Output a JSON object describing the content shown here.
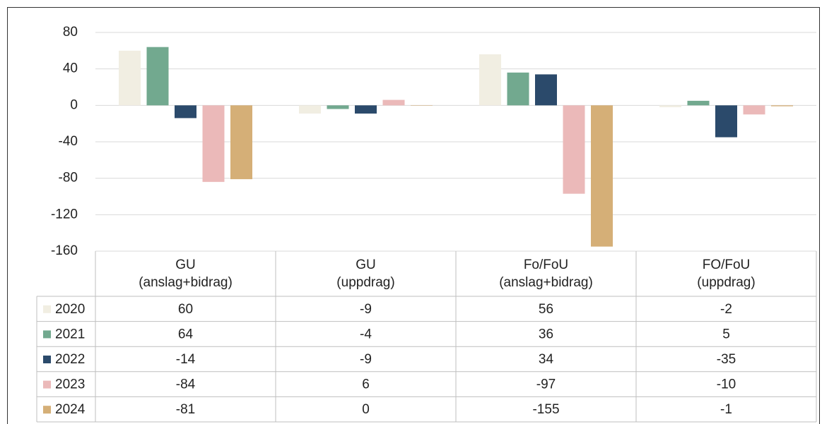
{
  "chart_data": {
    "type": "bar",
    "categories": [
      "GU\n(anslag+bidrag)",
      "GU\n(uppdrag)",
      "Fo/FoU\n(anslag+bidrag)",
      "FO/FoU\n(uppdrag)"
    ],
    "series": [
      {
        "name": "2020",
        "color": "#f1eee2",
        "values": [
          60,
          -9,
          56,
          -2
        ]
      },
      {
        "name": "2021",
        "color": "#72a98f",
        "values": [
          64,
          -4,
          36,
          5
        ]
      },
      {
        "name": "2022",
        "color": "#2b4a6b",
        "values": [
          -14,
          -9,
          34,
          -35
        ]
      },
      {
        "name": "2023",
        "color": "#ebb9b9",
        "values": [
          -84,
          6,
          -97,
          -10
        ]
      },
      {
        "name": "2024",
        "color": "#d5af77",
        "values": [
          -81,
          0,
          -155,
          -1
        ]
      }
    ],
    "ylim": [
      -160,
      80
    ],
    "yticks": [
      -160,
      -120,
      -80,
      -40,
      0,
      40,
      80
    ],
    "grid": true
  }
}
